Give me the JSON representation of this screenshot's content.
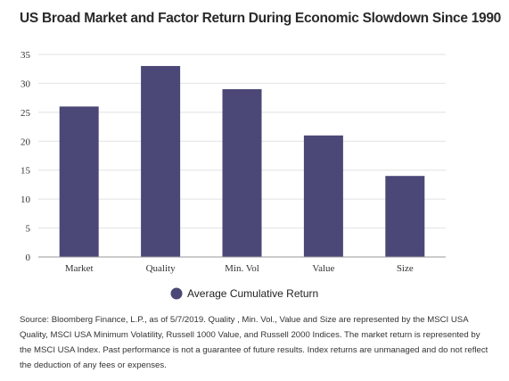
{
  "title": "US Broad Market and Factor Return During Economic Slowdown Since 1990",
  "source_note": "Source: Bloomberg Finance, L.P., as of  5/7/2019. Quality , Min. Vol., Value and Size are represented by the MSCI USA Quality, MSCI USA Minimum Volatility, Russell 1000 Value, and Russell 2000 Indices. The market return is represented by the MSCI USA Index. Past performance is not a guarantee of future results. Index returns are unmanaged and do not reflect the deduction of any fees or expenses.",
  "colors": {
    "bar": "#4b4878",
    "grid": "#e2e2e2",
    "axis": "#9a9a9a"
  },
  "chart_data": {
    "type": "bar",
    "title": "US Broad Market and Factor Return During Economic Slowdown Since 1990",
    "xlabel": "",
    "ylabel": "",
    "categories": [
      "Market",
      "Quality",
      "Min. Vol",
      "Value",
      "Size"
    ],
    "series": [
      {
        "name": "Average Cumulative Return",
        "values": [
          26,
          33,
          29,
          21,
          14
        ]
      }
    ],
    "ylim": [
      0,
      35
    ],
    "yticks": [
      0,
      5,
      10,
      15,
      20,
      25,
      30,
      35
    ],
    "grid": true,
    "legend": "bottom-center"
  }
}
